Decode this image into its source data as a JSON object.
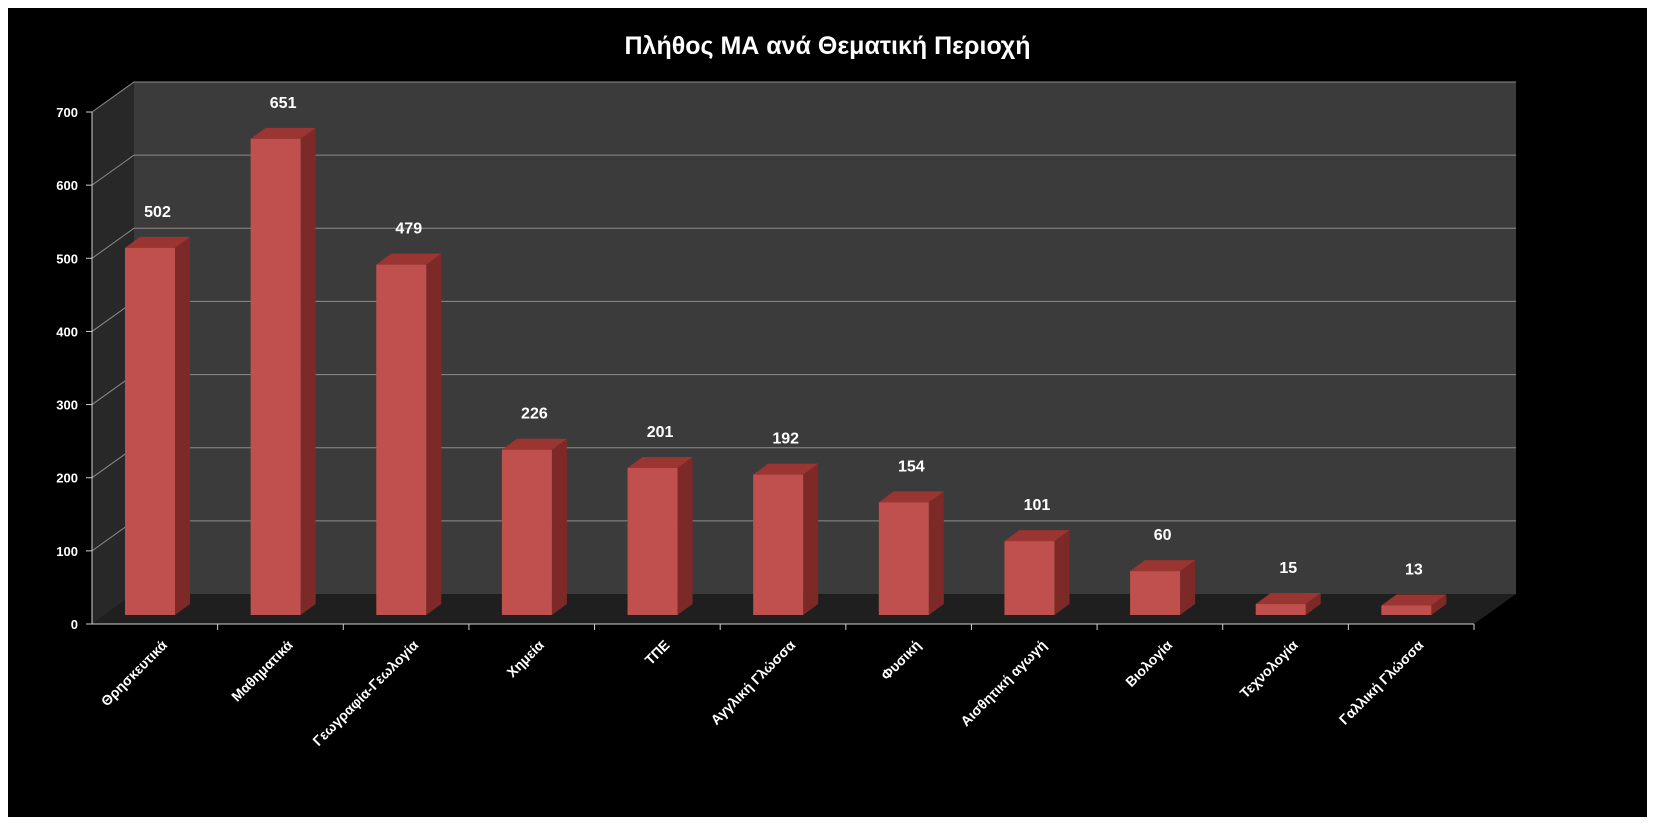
{
  "chart_data": {
    "type": "bar",
    "title": "Πλήθος ΜΑ ανά Θεματική Περιοχή",
    "categories": [
      "Θρησκευτικά",
      "Μαθηματικά",
      "Γεωγραφία-Γεωλογία",
      "Χημεία",
      "ΤΠΕ",
      "Αγγλική Γλώσσα",
      "Φυσική",
      "Αισθητική αγωγή",
      "Βιολογία",
      "Τεχνολογία",
      "Γαλλική Γλώσσα"
    ],
    "values": [
      502,
      651,
      479,
      226,
      201,
      192,
      154,
      101,
      60,
      15,
      13
    ],
    "yticks": [
      "0",
      "100",
      "200",
      "300",
      "400",
      "500",
      "600",
      "700"
    ],
    "ylim": [
      0,
      700
    ],
    "grid": true,
    "data_labels": true,
    "style": "3d-column",
    "colors": {
      "bar_front": "#c0504d",
      "bar_side": "#7d2927",
      "bar_top": "#9b3532",
      "back_wall": "#3b3b3b",
      "side_wall": "#282828",
      "floor": "#1f1f1f",
      "background": "#000000",
      "text": "#ffffff",
      "gridline": "#8c8c8c"
    }
  }
}
